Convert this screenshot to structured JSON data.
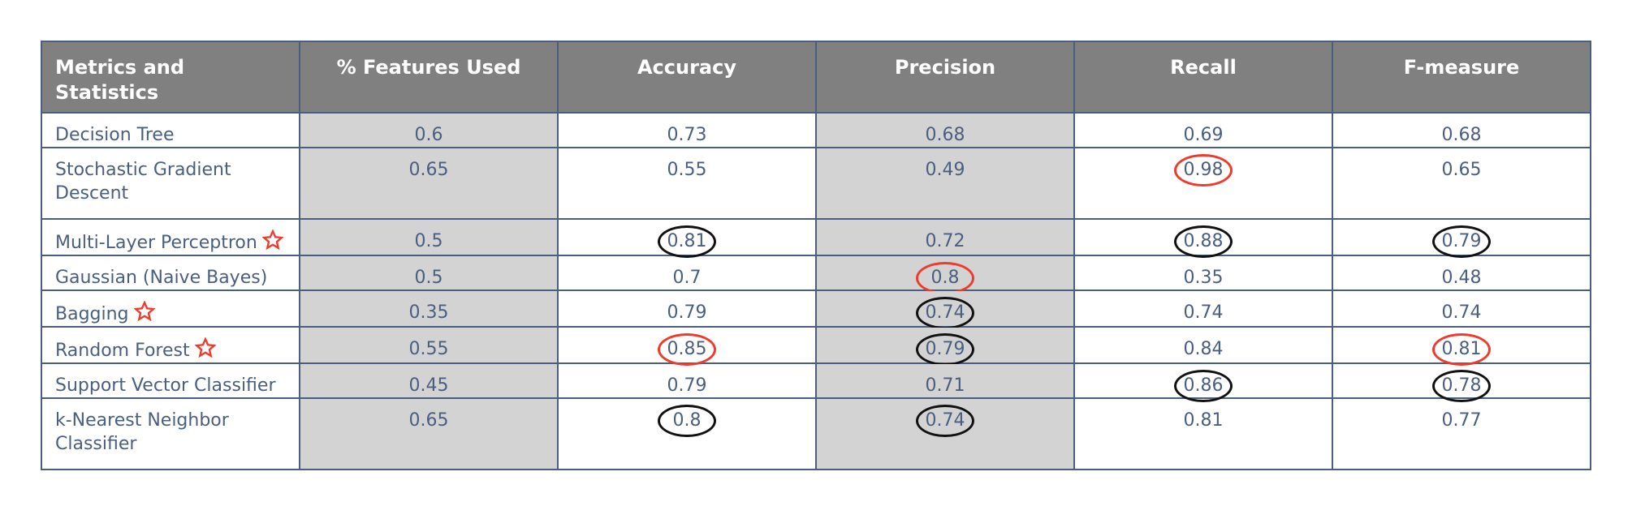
{
  "chart_data": {
    "type": "table",
    "columns": [
      "Metrics and Statistics",
      "% Features Used",
      "Accuracy",
      "Precision",
      "Recall",
      "F-measure"
    ],
    "rows": [
      {
        "name": "Decision Tree",
        "values": [
          "0.6",
          "0.73",
          "0.68",
          "0.69",
          "0.68"
        ],
        "star": false,
        "circles": [
          null,
          null,
          null,
          null,
          null
        ]
      },
      {
        "name": "Stochastic Gradient Descent",
        "values": [
          "0.65",
          "0.55",
          "0.49",
          "0.98",
          "0.65"
        ],
        "star": false,
        "circles": [
          null,
          null,
          null,
          "red",
          null
        ]
      },
      {
        "name": "Multi-Layer Perceptron",
        "values": [
          "0.5",
          "0.81",
          "0.72",
          "0.88",
          "0.79"
        ],
        "star": true,
        "circles": [
          null,
          "black",
          null,
          "black",
          "black"
        ]
      },
      {
        "name": "Gaussian (Naive Bayes)",
        "values": [
          "0.5",
          "0.7",
          "0.8",
          "0.35",
          "0.48"
        ],
        "star": false,
        "circles": [
          null,
          null,
          "red",
          null,
          null
        ]
      },
      {
        "name": "Bagging",
        "values": [
          "0.35",
          "0.79",
          "0.74",
          "0.74",
          "0.74"
        ],
        "star": true,
        "circles": [
          null,
          null,
          "black",
          null,
          null
        ]
      },
      {
        "name": "Random Forest",
        "values": [
          "0.55",
          "0.85",
          "0.79",
          "0.84",
          "0.81"
        ],
        "star": true,
        "circles": [
          null,
          "red",
          "black",
          null,
          "red"
        ]
      },
      {
        "name": "Support Vector Classifier",
        "values": [
          "0.45",
          "0.79",
          "0.71",
          "0.86",
          "0.78"
        ],
        "star": false,
        "circles": [
          null,
          null,
          null,
          "black",
          "black"
        ]
      },
      {
        "name": "k-Nearest Neighbor Classifier",
        "values": [
          "0.65",
          "0.8",
          "0.74",
          "0.81",
          "0.77"
        ],
        "star": false,
        "circles": [
          null,
          "black",
          "black",
          null,
          null
        ]
      }
    ],
    "shaded_columns": [
      1,
      3
    ],
    "colors": {
      "header_bg": "#808080",
      "header_text": "#ffffff",
      "body_text": "#4a5f7f",
      "border": "#4a5f7f",
      "shaded_bg": "#d3d3d3",
      "circle_black": "#111111",
      "circle_red": "#ee3b2e",
      "star": "#ee3b2e"
    },
    "marker_icon": "star-outline-icon"
  }
}
